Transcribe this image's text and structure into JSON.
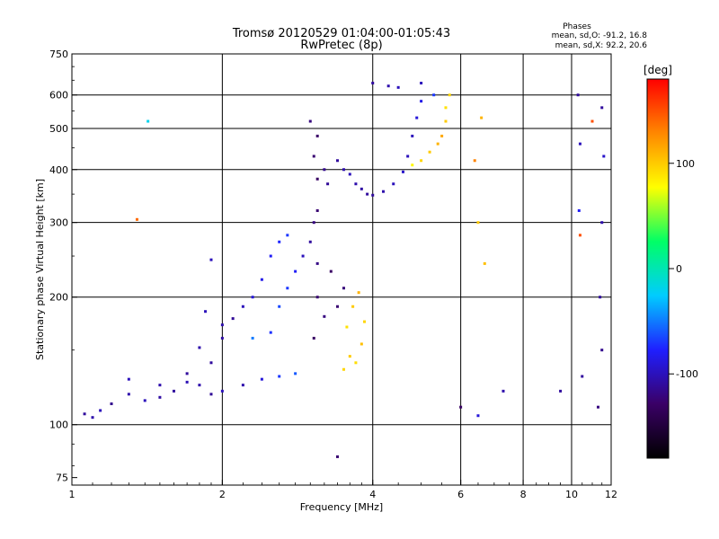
{
  "chart_data": {
    "type": "scatter",
    "title": "Tromsø 20120529 01:04:00-01:05:43",
    "subtitle": "RwPretec (8p)",
    "xlabel": "Frequency [MHz]",
    "ylabel": "Stationary phase Virtual Height [km]",
    "x_scale": "log",
    "y_scale": "log",
    "xlim": [
      1,
      12
    ],
    "ylim": [
      72,
      750
    ],
    "x_ticks": [
      1,
      2,
      4,
      6,
      8,
      10,
      12
    ],
    "x_tick_labels": [
      "1",
      "2",
      "4",
      "6",
      "8",
      "10",
      "12"
    ],
    "x_grid": [
      2,
      4,
      6,
      8,
      10
    ],
    "y_ticks": [
      75,
      100,
      200,
      300,
      400,
      500,
      600,
      750
    ],
    "y_tick_labels": [
      "75",
      "100",
      "200",
      "300",
      "400",
      "500",
      "600",
      "750"
    ],
    "y_grid": [
      100,
      200,
      300,
      400,
      500,
      600
    ],
    "grid": true,
    "phases_box": {
      "title": "Phases",
      "line_o": "mean, sd,O: -91.2, 16.8",
      "line_x": "mean, sd,X:  92.2, 20.6"
    },
    "colorbar": {
      "label": "[deg]",
      "range": [
        -180,
        180
      ],
      "ticks": [
        100,
        0,
        -100
      ],
      "tick_labels": [
        "100",
        "0",
        "-100"
      ],
      "colormap": [
        "#000000",
        "#3a0066",
        "#1f1fff",
        "#00ccff",
        "#00ff66",
        "#ffff00",
        "#ff8800",
        "#ff0000"
      ]
    },
    "series_points": [
      [
        1.06,
        106,
        -110
      ],
      [
        1.1,
        104,
        -105
      ],
      [
        1.14,
        108,
        -100
      ],
      [
        1.2,
        112,
        -115
      ],
      [
        1.3,
        118,
        -105
      ],
      [
        1.4,
        114,
        -100
      ],
      [
        1.5,
        116,
        -108
      ],
      [
        1.6,
        120,
        -110
      ],
      [
        1.7,
        126,
        -102
      ],
      [
        1.8,
        124,
        -105
      ],
      [
        1.9,
        118,
        -112
      ],
      [
        2.0,
        120,
        -100
      ],
      [
        2.2,
        124,
        -105
      ],
      [
        2.4,
        128,
        -90
      ],
      [
        2.6,
        130,
        -70
      ],
      [
        2.8,
        132,
        -60
      ],
      [
        1.3,
        128,
        -100
      ],
      [
        1.5,
        124,
        -105
      ],
      [
        1.7,
        132,
        -110
      ],
      [
        1.8,
        152,
        -105
      ],
      [
        1.9,
        140,
        -110
      ],
      [
        2.0,
        160,
        -108
      ],
      [
        2.1,
        178,
        -112
      ],
      [
        2.0,
        172,
        -105
      ],
      [
        2.2,
        190,
        -100
      ],
      [
        2.3,
        200,
        -90
      ],
      [
        2.4,
        220,
        -85
      ],
      [
        2.5,
        250,
        -80
      ],
      [
        2.6,
        270,
        -75
      ],
      [
        2.7,
        280,
        -70
      ],
      [
        2.5,
        165,
        -72
      ],
      [
        2.6,
        190,
        -65
      ],
      [
        2.7,
        210,
        -70
      ],
      [
        2.8,
        230,
        -80
      ],
      [
        2.9,
        250,
        -100
      ],
      [
        3.0,
        270,
        -110
      ],
      [
        3.05,
        300,
        -120
      ],
      [
        3.1,
        320,
        -125
      ],
      [
        3.05,
        160,
        -130
      ],
      [
        3.1,
        200,
        -125
      ],
      [
        3.1,
        240,
        -118
      ],
      [
        3.2,
        180,
        -120
      ],
      [
        3.3,
        230,
        -130
      ],
      [
        3.4,
        190,
        -125
      ],
      [
        3.5,
        210,
        -122
      ],
      [
        3.55,
        170,
        90
      ],
      [
        3.65,
        190,
        100
      ],
      [
        3.75,
        205,
        110
      ],
      [
        3.85,
        175,
        95
      ],
      [
        3.6,
        145,
        100
      ],
      [
        3.7,
        140,
        92
      ],
      [
        3.8,
        155,
        105
      ],
      [
        3.5,
        135,
        95
      ],
      [
        3.1,
        380,
        -130
      ],
      [
        3.05,
        430,
        -125
      ],
      [
        3.1,
        480,
        -128
      ],
      [
        3.0,
        520,
        -120
      ],
      [
        3.2,
        400,
        -115
      ],
      [
        3.25,
        370,
        -112
      ],
      [
        3.4,
        420,
        -110
      ],
      [
        3.5,
        400,
        -105
      ],
      [
        3.6,
        390,
        -100
      ],
      [
        3.7,
        370,
        -105
      ],
      [
        3.8,
        360,
        -108
      ],
      [
        3.9,
        350,
        -110
      ],
      [
        4.0,
        348,
        -110
      ],
      [
        4.2,
        355,
        -105
      ],
      [
        4.4,
        370,
        -100
      ],
      [
        4.6,
        395,
        -95
      ],
      [
        4.7,
        430,
        -100
      ],
      [
        4.8,
        480,
        -100
      ],
      [
        4.9,
        530,
        -90
      ],
      [
        5.0,
        580,
        -85
      ],
      [
        5.0,
        640,
        -100
      ],
      [
        5.3,
        600,
        -70
      ],
      [
        4.8,
        410,
        80
      ],
      [
        5.0,
        420,
        95
      ],
      [
        5.2,
        440,
        100
      ],
      [
        5.4,
        460,
        110
      ],
      [
        5.5,
        480,
        115
      ],
      [
        5.6,
        520,
        100
      ],
      [
        5.6,
        560,
        90
      ],
      [
        5.7,
        600,
        95
      ],
      [
        4.0,
        640,
        -110
      ],
      [
        4.3,
        630,
        -105
      ],
      [
        4.5,
        625,
        -100
      ],
      [
        6.5,
        300,
        100
      ],
      [
        6.7,
        240,
        105
      ],
      [
        6.6,
        530,
        110
      ],
      [
        6.4,
        420,
        130
      ],
      [
        10.3,
        600,
        -110
      ],
      [
        10.4,
        460,
        -100
      ],
      [
        10.35,
        320,
        -80
      ],
      [
        10.4,
        280,
        150
      ],
      [
        10.5,
        130,
        -110
      ],
      [
        11.5,
        560,
        -110
      ],
      [
        11.6,
        430,
        -95
      ],
      [
        11.5,
        300,
        -105
      ],
      [
        11.4,
        200,
        -110
      ],
      [
        11.5,
        150,
        -115
      ],
      [
        11.3,
        110,
        -120
      ],
      [
        11.0,
        520,
        150
      ],
      [
        9.5,
        120,
        -110
      ],
      [
        7.3,
        120,
        -105
      ],
      [
        6.0,
        110,
        -130
      ],
      [
        6.5,
        105,
        -90
      ],
      [
        3.4,
        84,
        -125
      ],
      [
        1.42,
        520,
        -20
      ],
      [
        1.9,
        245,
        -100
      ],
      [
        1.35,
        305,
        140
      ],
      [
        2.3,
        160,
        -50
      ],
      [
        1.85,
        185,
        -100
      ]
    ]
  }
}
